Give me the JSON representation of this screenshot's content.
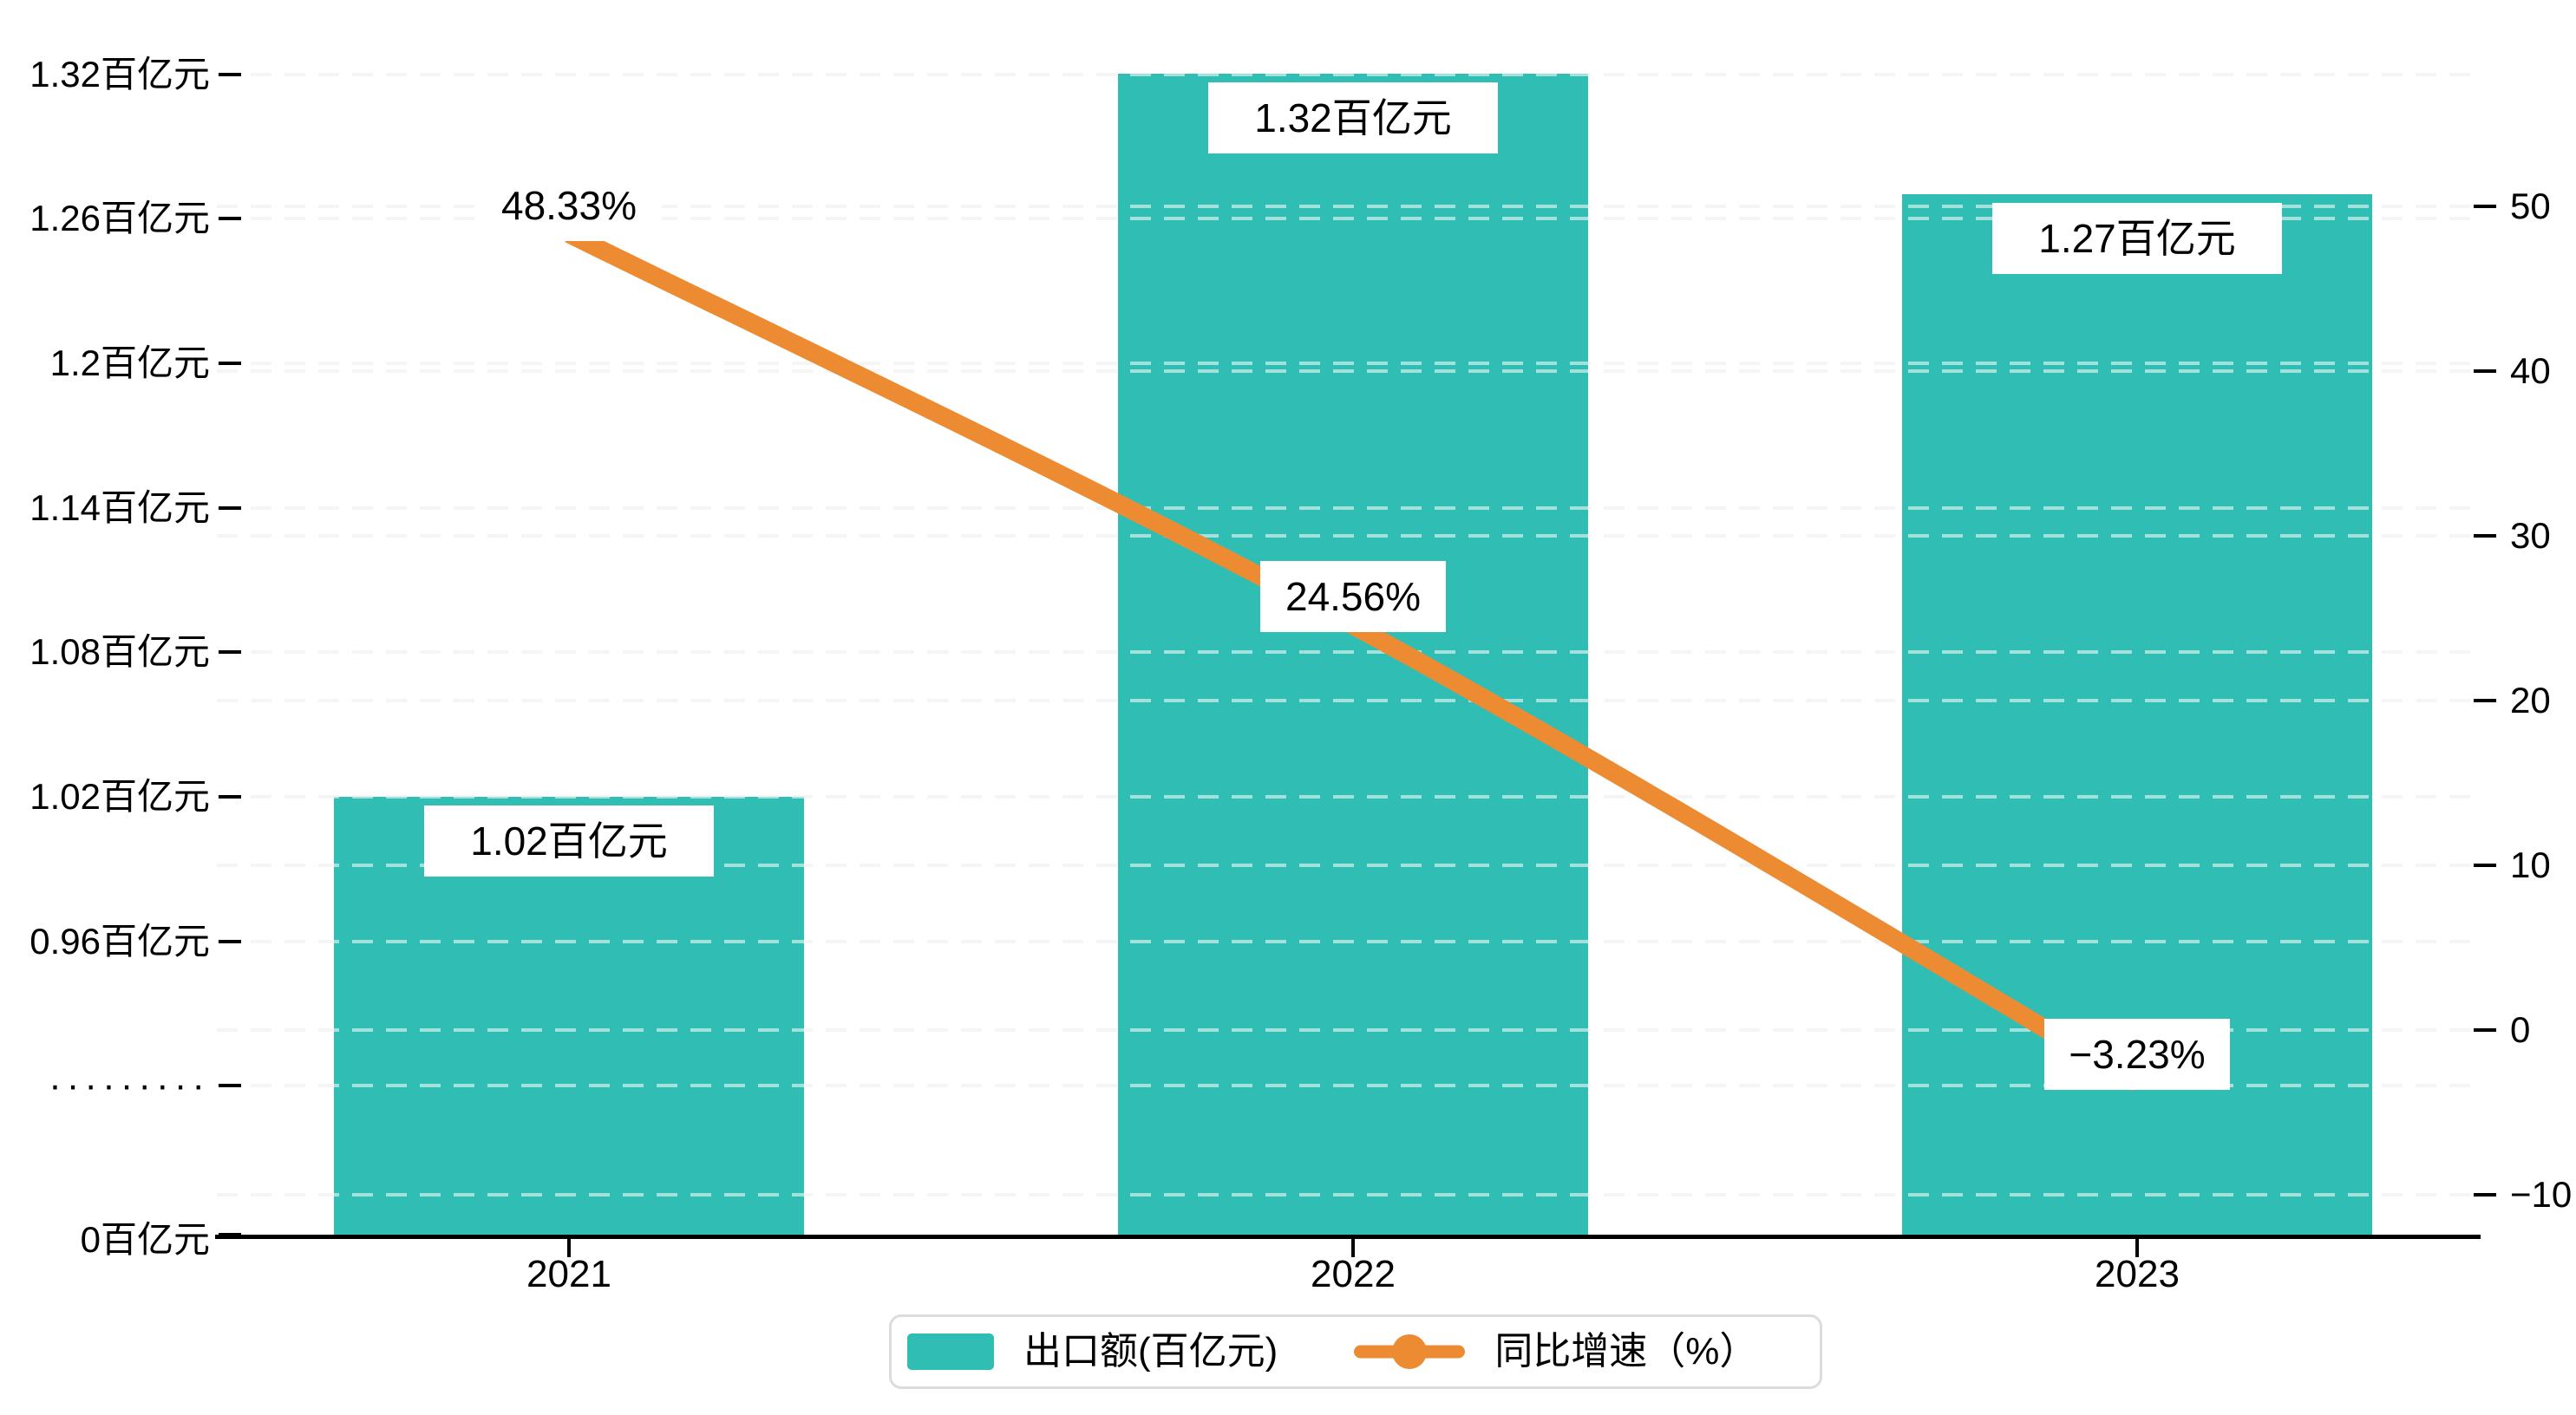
{
  "chart_data": {
    "type": "bar-line-combo",
    "categories": [
      "2021",
      "2022",
      "2023"
    ],
    "series": [
      {
        "name": "出口额(百亿元)",
        "type": "bar",
        "unit": "百亿元",
        "color": "#30BEB4",
        "values": [
          1.02,
          1.32,
          1.27
        ],
        "labels": [
          "1.02百亿元",
          "1.32百亿元",
          "1.27百亿元"
        ]
      },
      {
        "name": "同比增速（%）",
        "type": "line",
        "unit": "%",
        "color": "#ED8B32",
        "values": [
          48.33,
          24.56,
          -3.23
        ],
        "labels": [
          "48.33%",
          "24.56%",
          "−3.23%"
        ]
      }
    ],
    "left_axis": {
      "tick_labels": [
        "1.32百亿元",
        "1.26百亿元",
        "1.2百亿元",
        "1.14百亿元",
        "1.08百亿元",
        "1.02百亿元",
        "0.96百亿元",
        "·········",
        "0百亿元"
      ],
      "tick_values": [
        1.32,
        1.26,
        1.2,
        1.14,
        1.08,
        1.02,
        0.96,
        null,
        0
      ],
      "axis_break": true
    },
    "right_axis": {
      "tick_labels": [
        "50",
        "40",
        "30",
        "20",
        "10",
        "0",
        "−10"
      ],
      "tick_values": [
        50,
        40,
        30,
        20,
        10,
        0,
        -10
      ],
      "range": [
        -12.5,
        52.5
      ]
    },
    "grid": "dashed-horizontal",
    "legend_position": "bottom-center"
  },
  "legend": {
    "items": [
      {
        "label": "出口额(百亿元)",
        "marker": "bar-swatch",
        "color": "#30BEB4"
      },
      {
        "label": "同比增速（%）",
        "marker": "line-dot",
        "color": "#ED8B32"
      }
    ]
  },
  "colors": {
    "bar": "#30BEB4",
    "line": "#ED8B32",
    "grid": "#e9e9e9",
    "axis": "#000000",
    "label_background": "#ffffff",
    "legend_border": "#dcdcdc",
    "text": "#000000"
  }
}
